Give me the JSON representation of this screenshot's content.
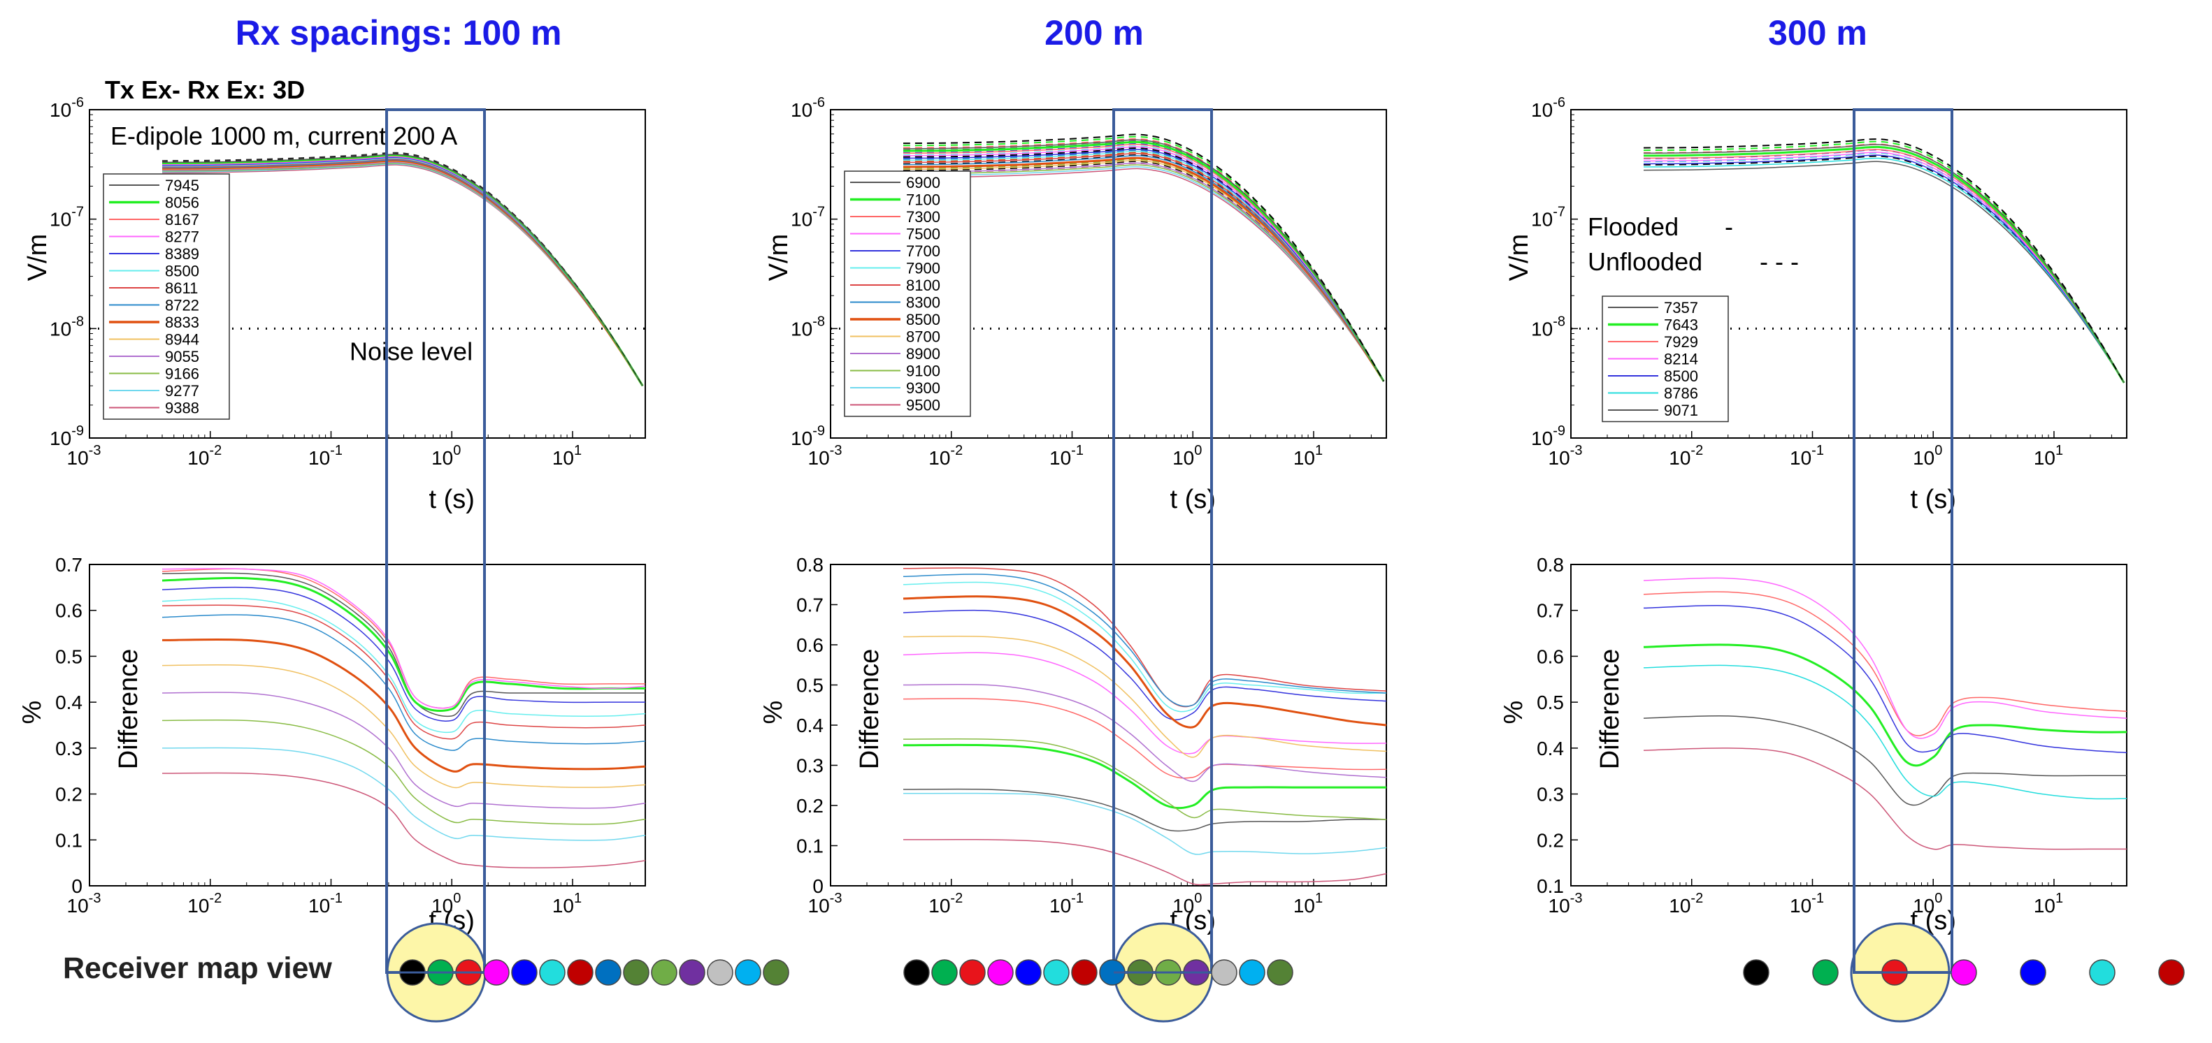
{
  "titles": [
    "Rx spacings: 100 m",
    "200 m",
    "300 m"
  ],
  "receiver_label": "Receiver map view",
  "receiver_map": [
    {
      "colors": [
        "#000000",
        "#00b050",
        "#e8141b",
        "#ff00ff",
        "#0000ff",
        "#22dddd",
        "#c00000",
        "#0070c0",
        "#548235",
        "#70ad47",
        "#7030a0",
        "#c0c0c0",
        "#00b0f0",
        "#548235"
      ]
    },
    {
      "colors": [
        "#000000",
        "#00b050",
        "#e8141b",
        "#ff00ff",
        "#0000ff",
        "#22dddd",
        "#c00000",
        "#0070c0",
        "#548235",
        "#70ad47",
        "#7030a0",
        "#c0c0c0",
        "#00b0f0",
        "#548235"
      ]
    },
    {
      "colors": [
        "#000000",
        "#00b050",
        "#e8141b",
        "#ff00ff",
        "#0000ff",
        "#22dddd",
        "#c00000"
      ]
    }
  ],
  "chart_data": [
    {
      "type": "line",
      "panel": "top-100m",
      "title": "Tx Ex- Rx Ex: 3D",
      "annotations": [
        "E-dipole 1000 m, current 200 A",
        "Noise level"
      ],
      "xlabel": "t (s)",
      "ylabel": "V/m",
      "xscale": "log",
      "yscale": "log",
      "xlim": [
        0.001,
        40
      ],
      "ylim": [
        1e-09,
        1e-06
      ],
      "xticks": [
        "10-3",
        "10-2",
        "10-1",
        "100",
        "101"
      ],
      "yticks": [
        "10-9",
        "10-8",
        "10-7",
        "10-6"
      ],
      "noise_level": 1e-08,
      "legend": [
        "7945",
        "8056",
        "8167",
        "8277",
        "8389",
        "8500",
        "8611",
        "8722",
        "8833",
        "8944",
        "9055",
        "9166",
        "9277",
        "9388"
      ],
      "series_colors": [
        "#555555",
        "#22ee22",
        "#ff6666",
        "#ff66ff",
        "#3333dd",
        "#66eeee",
        "#dd4444",
        "#2a8acb",
        "#e05010",
        "#f0c060",
        "#b070d0",
        "#88bb44",
        "#70d8ee",
        "#cc5577"
      ],
      "series_widths": [
        1.5,
        3,
        1.5,
        1.5,
        1.5,
        1.5,
        1.5,
        1.5,
        3,
        1.5,
        1.5,
        1.5,
        1.5,
        1.5
      ],
      "y_at_start": [
        3.3e-07,
        3.25e-07,
        3.2e-07,
        3.15e-07,
        3.1e-07,
        3.05e-07,
        3e-07,
        2.95e-07,
        2.9e-07,
        2.85e-07,
        2.8e-07,
        2.75e-07,
        2.7e-07,
        2.65e-07
      ],
      "y_at_peak": 3.9e-07,
      "y_at_end": 3e-09
    },
    {
      "type": "line",
      "panel": "top-200m",
      "xlabel": "t (s)",
      "ylabel": "V/m",
      "xscale": "log",
      "yscale": "log",
      "xlim": [
        0.001,
        40
      ],
      "ylim": [
        1e-09,
        1e-06
      ],
      "xticks": [
        "10-3",
        "10-2",
        "10-1",
        "100",
        "101"
      ],
      "yticks": [
        "10-9",
        "10-8",
        "10-7",
        "10-6"
      ],
      "noise_level": 1e-08,
      "legend": [
        "6900",
        "7100",
        "7300",
        "7500",
        "7700",
        "7900",
        "8100",
        "8300",
        "8500",
        "8700",
        "8900",
        "9100",
        "9300",
        "9500"
      ],
      "series_colors": [
        "#555555",
        "#22ee22",
        "#ff6666",
        "#ff66ff",
        "#3333dd",
        "#66eeee",
        "#dd4444",
        "#2a8acb",
        "#e05010",
        "#f0c060",
        "#b070d0",
        "#88bb44",
        "#70d8ee",
        "#cc5577"
      ],
      "series_widths": [
        1.5,
        3,
        1.5,
        1.5,
        1.5,
        1.5,
        1.5,
        1.5,
        3,
        1.5,
        1.5,
        1.5,
        1.5,
        1.5
      ],
      "y_at_start": [
        4.4e-07,
        4.2e-07,
        4e-07,
        3.8e-07,
        3.6e-07,
        3.45e-07,
        3.3e-07,
        3.15e-07,
        3e-07,
        2.85e-07,
        2.7e-07,
        2.6e-07,
        2.5e-07,
        2.4e-07
      ],
      "y_at_peak": 5.3e-07,
      "y_at_end": 3.3e-09
    },
    {
      "type": "line",
      "panel": "top-300m",
      "annotations": [
        "Flooded",
        "-",
        "Unflooded",
        "- - -"
      ],
      "xlabel": "t (s)",
      "ylabel": "V/m",
      "xscale": "log",
      "yscale": "log",
      "xlim": [
        0.001,
        40
      ],
      "ylim": [
        1e-09,
        1e-06
      ],
      "xticks": [
        "10-3",
        "10-2",
        "10-1",
        "100",
        "101"
      ],
      "yticks": [
        "10-9",
        "10-8",
        "10-7",
        "10-6"
      ],
      "noise_level": 1e-08,
      "legend": [
        "7357",
        "7643",
        "7929",
        "8214",
        "8500",
        "8786",
        "9071"
      ],
      "series_colors": [
        "#555555",
        "#22ee22",
        "#ff6666",
        "#ff66ff",
        "#3333dd",
        "#22dddd",
        "#555555"
      ],
      "series_widths": [
        1.5,
        3,
        1.5,
        1.5,
        1.5,
        1.5,
        1.5
      ],
      "y_at_start": [
        4e-07,
        3.8e-07,
        3.6e-07,
        3.4e-07,
        3.2e-07,
        3e-07,
        2.8e-07
      ],
      "y_at_peak": 4.8e-07,
      "y_at_end": 3.2e-09
    },
    {
      "type": "line",
      "panel": "bottom-100m",
      "xlabel": "t (s)",
      "ylabel": "%",
      "inner_label": "Difference",
      "xscale": "log",
      "xlim": [
        0.001,
        40
      ],
      "ylim": [
        0,
        0.7
      ],
      "xticks": [
        "10-3",
        "10-2",
        "10-1",
        "100",
        "101"
      ],
      "yticks": [
        "0",
        "0.1",
        "0.2",
        "0.3",
        "0.4",
        "0.5",
        "0.6",
        "0.7"
      ],
      "x": [
        0.004,
        0.02,
        0.06,
        0.15,
        0.3,
        0.5,
        1.0,
        1.5,
        3,
        8,
        20,
        40
      ],
      "series": [
        {
          "name": "7945",
          "color": "#555555",
          "width": 1.5,
          "values": [
            0.68,
            0.68,
            0.66,
            0.6,
            0.52,
            0.4,
            0.37,
            0.42,
            0.42,
            0.42,
            0.42,
            0.42
          ]
        },
        {
          "name": "8056",
          "color": "#22ee22",
          "width": 3,
          "values": [
            0.665,
            0.67,
            0.65,
            0.59,
            0.51,
            0.4,
            0.385,
            0.44,
            0.44,
            0.43,
            0.43,
            0.43
          ]
        },
        {
          "name": "8167",
          "color": "#ff6666",
          "width": 1.5,
          "values": [
            0.685,
            0.69,
            0.67,
            0.61,
            0.53,
            0.41,
            0.39,
            0.45,
            0.45,
            0.44,
            0.44,
            0.44
          ]
        },
        {
          "name": "8277",
          "color": "#ff66ff",
          "width": 1.5,
          "values": [
            0.69,
            0.69,
            0.675,
            0.615,
            0.535,
            0.41,
            0.39,
            0.445,
            0.445,
            0.435,
            0.43,
            0.435
          ]
        },
        {
          "name": "8389",
          "color": "#3333dd",
          "width": 1.5,
          "values": [
            0.645,
            0.65,
            0.63,
            0.57,
            0.49,
            0.385,
            0.36,
            0.41,
            0.405,
            0.4,
            0.4,
            0.4
          ]
        },
        {
          "name": "8500",
          "color": "#66eeee",
          "width": 1.5,
          "values": [
            0.62,
            0.625,
            0.6,
            0.54,
            0.46,
            0.36,
            0.335,
            0.38,
            0.375,
            0.37,
            0.37,
            0.375
          ]
        },
        {
          "name": "8611",
          "color": "#dd4444",
          "width": 1.5,
          "values": [
            0.61,
            0.61,
            0.59,
            0.53,
            0.45,
            0.35,
            0.32,
            0.355,
            0.35,
            0.345,
            0.345,
            0.35
          ]
        },
        {
          "name": "8722",
          "color": "#2a8acb",
          "width": 1.5,
          "values": [
            0.585,
            0.59,
            0.57,
            0.51,
            0.43,
            0.33,
            0.295,
            0.32,
            0.315,
            0.31,
            0.31,
            0.315
          ]
        },
        {
          "name": "8833",
          "color": "#e05010",
          "width": 3,
          "values": [
            0.535,
            0.535,
            0.515,
            0.46,
            0.39,
            0.3,
            0.25,
            0.265,
            0.26,
            0.255,
            0.255,
            0.26
          ]
        },
        {
          "name": "8944",
          "color": "#f0c060",
          "width": 1.5,
          "values": [
            0.48,
            0.48,
            0.46,
            0.41,
            0.34,
            0.26,
            0.215,
            0.225,
            0.22,
            0.215,
            0.215,
            0.22
          ]
        },
        {
          "name": "9055",
          "color": "#b070d0",
          "width": 1.5,
          "values": [
            0.42,
            0.42,
            0.4,
            0.36,
            0.3,
            0.22,
            0.175,
            0.18,
            0.175,
            0.17,
            0.17,
            0.18
          ]
        },
        {
          "name": "9166",
          "color": "#88bb44",
          "width": 1.5,
          "values": [
            0.36,
            0.36,
            0.345,
            0.31,
            0.26,
            0.19,
            0.14,
            0.145,
            0.14,
            0.135,
            0.135,
            0.145
          ]
        },
        {
          "name": "9277",
          "color": "#70d8ee",
          "width": 1.5,
          "values": [
            0.3,
            0.3,
            0.29,
            0.26,
            0.21,
            0.15,
            0.105,
            0.11,
            0.105,
            0.1,
            0.1,
            0.11
          ]
        },
        {
          "name": "9388",
          "color": "#cc5577",
          "width": 1.5,
          "values": [
            0.245,
            0.245,
            0.235,
            0.21,
            0.17,
            0.1,
            0.055,
            0.045,
            0.04,
            0.04,
            0.045,
            0.055
          ]
        }
      ]
    },
    {
      "type": "line",
      "panel": "bottom-200m",
      "xlabel": "t (s)",
      "ylabel": "%",
      "inner_label": "Difference",
      "xscale": "log",
      "xlim": [
        0.001,
        40
      ],
      "ylim": [
        0,
        0.8
      ],
      "xticks": [
        "10-3",
        "10-2",
        "10-1",
        "100",
        "101"
      ],
      "yticks": [
        "0",
        "0.1",
        "0.2",
        "0.3",
        "0.4",
        "0.5",
        "0.6",
        "0.7",
        "0.8"
      ],
      "x": [
        0.004,
        0.02,
        0.06,
        0.15,
        0.3,
        0.6,
        1.0,
        1.5,
        3,
        8,
        20,
        40
      ],
      "series": [
        {
          "name": "6900",
          "color": "#555555",
          "width": 1.5,
          "values": [
            0.24,
            0.24,
            0.23,
            0.21,
            0.18,
            0.14,
            0.14,
            0.155,
            0.16,
            0.16,
            0.165,
            0.165
          ]
        },
        {
          "name": "7100",
          "color": "#22ee22",
          "width": 3,
          "values": [
            0.35,
            0.35,
            0.34,
            0.31,
            0.26,
            0.2,
            0.2,
            0.24,
            0.245,
            0.245,
            0.245,
            0.245
          ]
        },
        {
          "name": "7300",
          "color": "#ff6666",
          "width": 1.5,
          "values": [
            0.465,
            0.465,
            0.45,
            0.41,
            0.35,
            0.28,
            0.27,
            0.3,
            0.3,
            0.295,
            0.29,
            0.29
          ]
        },
        {
          "name": "7500",
          "color": "#ff66ff",
          "width": 1.5,
          "values": [
            0.575,
            0.58,
            0.56,
            0.51,
            0.44,
            0.35,
            0.33,
            0.37,
            0.37,
            0.36,
            0.355,
            0.355
          ]
        },
        {
          "name": "7700",
          "color": "#3333dd",
          "width": 1.5,
          "values": [
            0.68,
            0.685,
            0.66,
            0.6,
            0.52,
            0.42,
            0.43,
            0.49,
            0.49,
            0.475,
            0.465,
            0.46
          ]
        },
        {
          "name": "7900",
          "color": "#66eeee",
          "width": 1.5,
          "values": [
            0.75,
            0.755,
            0.73,
            0.66,
            0.57,
            0.45,
            0.44,
            0.5,
            0.5,
            0.49,
            0.48,
            0.48
          ]
        },
        {
          "name": "8100",
          "color": "#dd4444",
          "width": 1.5,
          "values": [
            0.79,
            0.79,
            0.77,
            0.7,
            0.6,
            0.47,
            0.45,
            0.52,
            0.52,
            0.5,
            0.49,
            0.485
          ]
        },
        {
          "name": "8300",
          "color": "#2a8acb",
          "width": 1.5,
          "values": [
            0.77,
            0.775,
            0.75,
            0.68,
            0.59,
            0.47,
            0.45,
            0.51,
            0.51,
            0.495,
            0.485,
            0.48
          ]
        },
        {
          "name": "8500",
          "color": "#e05010",
          "width": 3,
          "values": [
            0.715,
            0.72,
            0.7,
            0.635,
            0.55,
            0.43,
            0.395,
            0.45,
            0.45,
            0.43,
            0.41,
            0.4
          ]
        },
        {
          "name": "8700",
          "color": "#f0c060",
          "width": 1.5,
          "values": [
            0.62,
            0.62,
            0.6,
            0.545,
            0.47,
            0.37,
            0.32,
            0.37,
            0.37,
            0.35,
            0.34,
            0.335
          ]
        },
        {
          "name": "8900",
          "color": "#b070d0",
          "width": 1.5,
          "values": [
            0.5,
            0.5,
            0.48,
            0.44,
            0.38,
            0.3,
            0.26,
            0.3,
            0.3,
            0.285,
            0.275,
            0.27
          ]
        },
        {
          "name": "9100",
          "color": "#88bb44",
          "width": 1.5,
          "values": [
            0.365,
            0.365,
            0.355,
            0.32,
            0.27,
            0.21,
            0.17,
            0.19,
            0.185,
            0.175,
            0.17,
            0.165
          ]
        },
        {
          "name": "9300",
          "color": "#70d8ee",
          "width": 1.5,
          "values": [
            0.23,
            0.23,
            0.225,
            0.2,
            0.17,
            0.12,
            0.08,
            0.085,
            0.085,
            0.08,
            0.085,
            0.095
          ]
        },
        {
          "name": "9500",
          "color": "#cc5577",
          "width": 1.5,
          "values": [
            0.115,
            0.115,
            0.11,
            0.095,
            0.07,
            0.035,
            0.005,
            0.005,
            0.01,
            0.01,
            0.015,
            0.03
          ]
        }
      ]
    },
    {
      "type": "line",
      "panel": "bottom-300m",
      "xlabel": "t (s)",
      "ylabel": "%",
      "inner_label": "Difference",
      "xscale": "log",
      "xlim": [
        0.001,
        40
      ],
      "ylim": [
        0.1,
        0.8
      ],
      "xticks": [
        "10-3",
        "10-2",
        "10-1",
        "100",
        "101"
      ],
      "yticks": [
        "0.1",
        "0.2",
        "0.3",
        "0.4",
        "0.5",
        "0.6",
        "0.7",
        "0.8"
      ],
      "x": [
        0.004,
        0.02,
        0.06,
        0.15,
        0.3,
        0.6,
        1.0,
        1.5,
        3,
        8,
        20,
        40
      ],
      "series": [
        {
          "name": "7357",
          "color": "#555555",
          "width": 1.5,
          "values": [
            0.465,
            0.47,
            0.455,
            0.42,
            0.37,
            0.28,
            0.295,
            0.34,
            0.345,
            0.34,
            0.34,
            0.34
          ]
        },
        {
          "name": "7643",
          "color": "#22ee22",
          "width": 3,
          "values": [
            0.62,
            0.625,
            0.61,
            0.56,
            0.49,
            0.37,
            0.38,
            0.44,
            0.45,
            0.44,
            0.435,
            0.435
          ]
        },
        {
          "name": "7929",
          "color": "#ff6666",
          "width": 1.5,
          "values": [
            0.735,
            0.74,
            0.72,
            0.66,
            0.58,
            0.44,
            0.44,
            0.5,
            0.51,
            0.495,
            0.485,
            0.48
          ]
        },
        {
          "name": "8214",
          "color": "#ff66ff",
          "width": 1.5,
          "values": [
            0.765,
            0.77,
            0.75,
            0.69,
            0.6,
            0.44,
            0.43,
            0.49,
            0.5,
            0.48,
            0.47,
            0.465
          ]
        },
        {
          "name": "8500",
          "color": "#3333dd",
          "width": 1.5,
          "values": [
            0.705,
            0.71,
            0.69,
            0.63,
            0.55,
            0.41,
            0.395,
            0.43,
            0.425,
            0.405,
            0.395,
            0.39
          ]
        },
        {
          "name": "8786",
          "color": "#22dddd",
          "width": 1.5,
          "values": [
            0.575,
            0.58,
            0.565,
            0.52,
            0.45,
            0.33,
            0.295,
            0.325,
            0.32,
            0.3,
            0.29,
            0.29
          ]
        },
        {
          "name": "9071",
          "color": "#cc5577",
          "width": 1.5,
          "values": [
            0.395,
            0.4,
            0.39,
            0.35,
            0.3,
            0.21,
            0.18,
            0.19,
            0.185,
            0.18,
            0.18,
            0.18
          ]
        }
      ]
    }
  ]
}
